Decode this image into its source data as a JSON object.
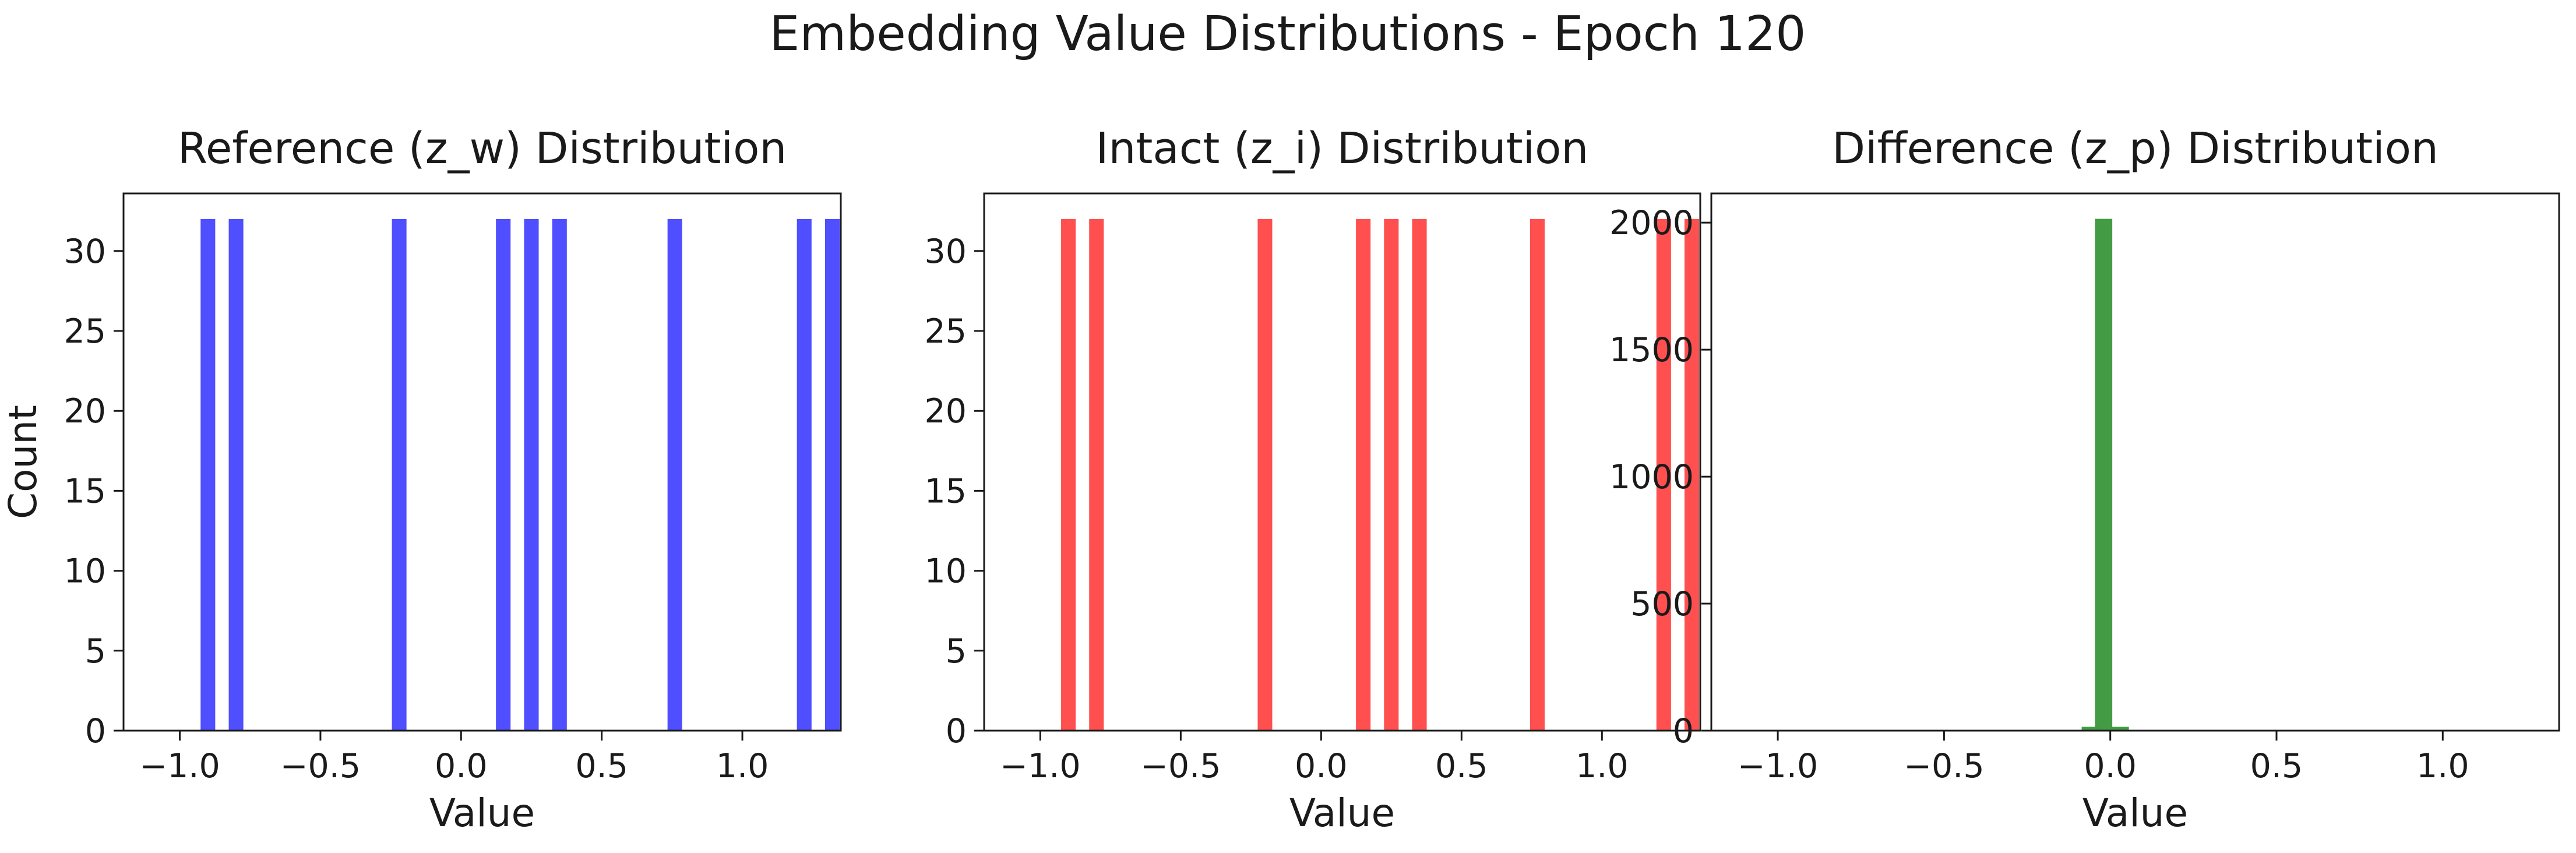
{
  "suptitle": "Embedding Value Distributions - Epoch 120",
  "chart_data": [
    {
      "type": "bar",
      "title": "Reference (z_w) Distribution",
      "xlabel": "Value",
      "ylabel": "Count",
      "color": "#4b4bff",
      "xlim": [
        -1.2,
        1.35
      ],
      "ylim": [
        0,
        33.6
      ],
      "xticks": [
        -1.0,
        -0.5,
        0.0,
        0.5,
        1.0
      ],
      "xtick_labels": [
        "−1.0",
        "−0.5",
        "0.0",
        "0.5",
        "1.0"
      ],
      "yticks": [
        0,
        5,
        10,
        15,
        20,
        25,
        30
      ],
      "ytick_labels": [
        "0",
        "5",
        "10",
        "15",
        "20",
        "25",
        "30"
      ],
      "bars": [
        {
          "x": -0.9,
          "value": 32
        },
        {
          "x": -0.8,
          "value": 32
        },
        {
          "x": -0.22,
          "value": 32
        },
        {
          "x": 0.15,
          "value": 32
        },
        {
          "x": 0.25,
          "value": 32
        },
        {
          "x": 0.35,
          "value": 32
        },
        {
          "x": 0.76,
          "value": 32
        },
        {
          "x": 1.22,
          "value": 32
        },
        {
          "x": 1.32,
          "value": 32
        }
      ]
    },
    {
      "type": "bar",
      "title": "Intact (z_i) Distribution",
      "xlabel": "Value",
      "ylabel": "",
      "color": "#ff4b4b",
      "xlim": [
        -1.2,
        1.35
      ],
      "ylim": [
        0,
        33.6
      ],
      "xticks": [
        -1.0,
        -0.5,
        0.0,
        0.5,
        1.0
      ],
      "xtick_labels": [
        "−1.0",
        "−0.5",
        "0.0",
        "0.5",
        "1.0"
      ],
      "yticks": [
        0,
        5,
        10,
        15,
        20,
        25,
        30
      ],
      "ytick_labels": [
        "0",
        "5",
        "10",
        "15",
        "20",
        "25",
        "30"
      ],
      "bars": [
        {
          "x": -0.9,
          "value": 32
        },
        {
          "x": -0.8,
          "value": 32
        },
        {
          "x": -0.2,
          "value": 32
        },
        {
          "x": 0.15,
          "value": 32
        },
        {
          "x": 0.25,
          "value": 32
        },
        {
          "x": 0.35,
          "value": 32
        },
        {
          "x": 0.77,
          "value": 32
        },
        {
          "x": 1.22,
          "value": 32
        },
        {
          "x": 1.32,
          "value": 32
        }
      ]
    },
    {
      "type": "bar",
      "title": "Difference (z_p) Distribution",
      "xlabel": "Value",
      "ylabel": "",
      "color": "#3f993f",
      "xlim": [
        -1.2,
        1.35
      ],
      "ylim": [
        0,
        2115
      ],
      "xticks": [
        -1.0,
        -0.5,
        0.0,
        0.5,
        1.0
      ],
      "xtick_labels": [
        "−1.0",
        "−0.5",
        "0.0",
        "0.5",
        "1.0"
      ],
      "yticks": [
        0,
        500,
        1000,
        1500,
        2000
      ],
      "ytick_labels": [
        "0",
        "500",
        "1000",
        "1500",
        "2000"
      ],
      "bars": [
        {
          "x": -0.06,
          "value": 15
        },
        {
          "x": -0.02,
          "value": 2015
        },
        {
          "x": 0.03,
          "value": 15
        }
      ]
    }
  ]
}
